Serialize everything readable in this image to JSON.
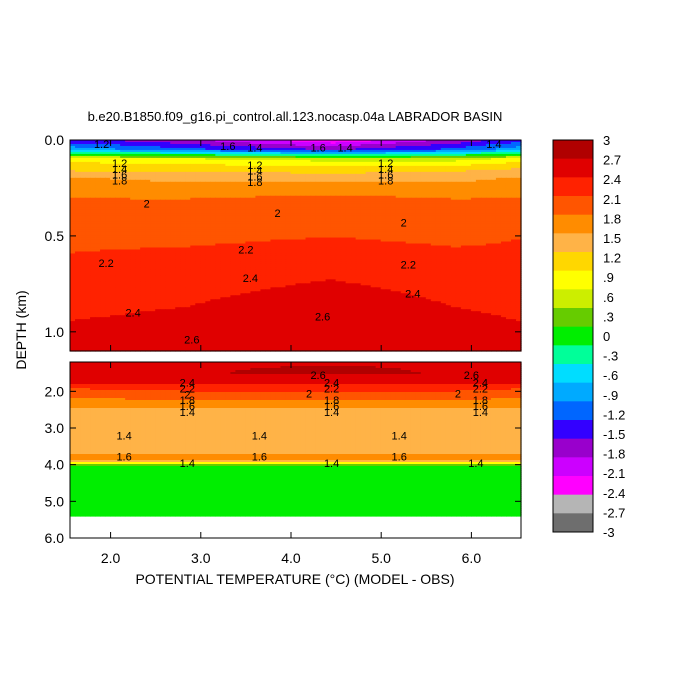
{
  "chart_data": {
    "type": "heatmap",
    "title": "b.e20.B1850.f09_g16.pi_control.all.123.nocasp.04a LABRADOR BASIN",
    "xlabel": "POTENTIAL TEMPERATURE (°C) (MODEL - OBS)",
    "ylabel": "DEPTH (km)",
    "xlim": [
      1.55,
      6.55
    ],
    "x_ticks": [
      "2.0",
      "3.0",
      "4.0",
      "5.0",
      "6.0"
    ],
    "x_tick_values": [
      2.0,
      3.0,
      4.0,
      5.0,
      6.0
    ],
    "panels": [
      {
        "name": "upper",
        "ylim": [
          0.0,
          1.1
        ],
        "y_ticks": [
          "0.0",
          "0.5",
          "1.0"
        ],
        "y_tick_values": [
          0.0,
          0.5,
          1.0
        ],
        "field": {
          "x": [
            1.55,
            2.85,
            4.45,
            5.8,
            6.55
          ],
          "y": [
            0.0,
            0.05,
            0.1,
            0.15,
            0.2,
            0.3,
            0.45,
            0.6,
            0.75,
            0.9,
            1.05,
            1.1
          ],
          "z": [
            [
              -1.5,
              -1.8,
              -2.4,
              -1.8,
              -1.4
            ],
            [
              -0.8,
              -1.2,
              -1.6,
              -1.2,
              -0.8
            ],
            [
              0.9,
              0.8,
              0.6,
              0.6,
              0.9
            ],
            [
              1.2,
              1.2,
              1.1,
              1.2,
              1.3
            ],
            [
              1.6,
              1.5,
              1.5,
              1.5,
              1.6
            ],
            [
              1.85,
              1.85,
              1.9,
              1.85,
              1.85
            ],
            [
              2.05,
              2.0,
              2.05,
              2.0,
              2.1
            ],
            [
              2.15,
              2.2,
              2.3,
              2.2,
              2.2
            ],
            [
              2.3,
              2.35,
              2.45,
              2.35,
              2.3
            ],
            [
              2.4,
              2.45,
              2.6,
              2.45,
              2.4
            ],
            [
              2.5,
              2.55,
              2.65,
              2.55,
              2.5
            ],
            [
              2.55,
              2.6,
              2.7,
              2.6,
              2.55
            ]
          ]
        },
        "contour_labels": [
          {
            "text": "1.2",
            "x": 1.9,
            "y": 0.02
          },
          {
            "text": "1.6",
            "x": 3.3,
            "y": 0.03
          },
          {
            "text": "1.4",
            "x": 3.6,
            "y": 0.04
          },
          {
            "text": "1.6",
            "x": 4.3,
            "y": 0.04
          },
          {
            "text": "1.4",
            "x": 4.6,
            "y": 0.04
          },
          {
            "text": "1.4",
            "x": 6.25,
            "y": 0.02
          },
          {
            "text": "1.2",
            "x": 2.1,
            "y": 0.12
          },
          {
            "text": "1.4",
            "x": 2.1,
            "y": 0.15
          },
          {
            "text": "1.6",
            "x": 2.1,
            "y": 0.18
          },
          {
            "text": "1.8",
            "x": 2.1,
            "y": 0.21
          },
          {
            "text": "1.2",
            "x": 3.6,
            "y": 0.13
          },
          {
            "text": "1.4",
            "x": 3.6,
            "y": 0.16
          },
          {
            "text": "1.6",
            "x": 3.6,
            "y": 0.19
          },
          {
            "text": "1.8",
            "x": 3.6,
            "y": 0.22
          },
          {
            "text": "1.2",
            "x": 5.05,
            "y": 0.12
          },
          {
            "text": "1.4",
            "x": 5.05,
            "y": 0.15
          },
          {
            "text": "1.6",
            "x": 5.05,
            "y": 0.18
          },
          {
            "text": "1.8",
            "x": 5.05,
            "y": 0.21
          },
          {
            "text": "2",
            "x": 2.4,
            "y": 0.33
          },
          {
            "text": "2",
            "x": 3.85,
            "y": 0.38
          },
          {
            "text": "2",
            "x": 5.25,
            "y": 0.43
          },
          {
            "text": "2.2",
            "x": 3.5,
            "y": 0.57
          },
          {
            "text": "2.2",
            "x": 1.95,
            "y": 0.64
          },
          {
            "text": "2.2",
            "x": 5.3,
            "y": 0.65
          },
          {
            "text": "2.4",
            "x": 3.55,
            "y": 0.72
          },
          {
            "text": "2.4",
            "x": 5.35,
            "y": 0.8
          },
          {
            "text": "2.4",
            "x": 2.25,
            "y": 0.9
          },
          {
            "text": "2.6",
            "x": 4.35,
            "y": 0.92
          },
          {
            "text": "2.6",
            "x": 2.9,
            "y": 1.04
          }
        ]
      },
      {
        "name": "lower",
        "ylim": [
          1.2,
          6.0
        ],
        "y_ticks": [
          "2.0",
          "3.0",
          "4.0",
          "5.0",
          "6.0"
        ],
        "y_tick_values": [
          2.0,
          3.0,
          4.0,
          5.0,
          6.0
        ],
        "field": {
          "x": [
            1.55,
            2.85,
            4.45,
            5.8,
            6.55
          ],
          "y": [
            1.2,
            1.5,
            1.75,
            1.95,
            2.15,
            2.35,
            2.55,
            3.0,
            3.5,
            3.85,
            3.95,
            4.05,
            4.1,
            5.4
          ],
          "z": [
            [
              2.7,
              2.7,
              2.7,
              2.7,
              2.7
            ],
            [
              2.65,
              2.7,
              2.75,
              2.7,
              2.65
            ],
            [
              2.5,
              2.5,
              2.55,
              2.5,
              2.5
            ],
            [
              2.1,
              2.2,
              2.2,
              2.2,
              2.1
            ],
            [
              1.9,
              1.95,
              1.95,
              1.95,
              1.9
            ],
            [
              1.7,
              1.7,
              1.7,
              1.7,
              1.7
            ],
            [
              1.5,
              1.5,
              1.5,
              1.5,
              1.5
            ],
            [
              1.45,
              1.45,
              1.45,
              1.45,
              1.45
            ],
            [
              1.5,
              1.5,
              1.5,
              1.5,
              1.5
            ],
            [
              1.62,
              1.62,
              1.62,
              1.62,
              1.62
            ],
            [
              1.0,
              1.0,
              1.0,
              1.0,
              1.0
            ],
            [
              0.0,
              0.0,
              0.0,
              0.0,
              0.0
            ],
            [
              0.05,
              0.05,
              0.05,
              0.05,
              0.05
            ],
            [
              0.05,
              0.05,
              0.05,
              0.05,
              0.05
            ]
          ]
        },
        "data_bottom": 5.4,
        "contour_labels": [
          {
            "text": "2.6",
            "x": 4.3,
            "y": 1.55
          },
          {
            "text": "2.6",
            "x": 6.0,
            "y": 1.55
          },
          {
            "text": "2.4",
            "x": 2.85,
            "y": 1.76
          },
          {
            "text": "2.2",
            "x": 2.85,
            "y": 1.92
          },
          {
            "text": "2",
            "x": 2.85,
            "y": 2.08
          },
          {
            "text": "1.8",
            "x": 2.85,
            "y": 2.24
          },
          {
            "text": "1.6",
            "x": 2.85,
            "y": 2.4
          },
          {
            "text": "1.4",
            "x": 2.85,
            "y": 2.56
          },
          {
            "text": "2.4",
            "x": 4.45,
            "y": 1.76
          },
          {
            "text": "2.2",
            "x": 4.45,
            "y": 1.92
          },
          {
            "text": "2",
            "x": 4.2,
            "y": 2.06
          },
          {
            "text": "1.8",
            "x": 4.45,
            "y": 2.24
          },
          {
            "text": "1.6",
            "x": 4.45,
            "y": 2.4
          },
          {
            "text": "1.4",
            "x": 4.45,
            "y": 2.56
          },
          {
            "text": "2.4",
            "x": 6.1,
            "y": 1.76
          },
          {
            "text": "2.2",
            "x": 6.1,
            "y": 1.92
          },
          {
            "text": "2",
            "x": 5.85,
            "y": 2.06
          },
          {
            "text": "1.8",
            "x": 6.1,
            "y": 2.24
          },
          {
            "text": "1.6",
            "x": 6.1,
            "y": 2.4
          },
          {
            "text": "1.4",
            "x": 6.1,
            "y": 2.56
          },
          {
            "text": "1.4",
            "x": 2.15,
            "y": 3.2
          },
          {
            "text": "1.4",
            "x": 3.65,
            "y": 3.2
          },
          {
            "text": "1.4",
            "x": 5.2,
            "y": 3.2
          },
          {
            "text": "1.6",
            "x": 2.15,
            "y": 3.78
          },
          {
            "text": "1.6",
            "x": 3.65,
            "y": 3.78
          },
          {
            "text": "1.6",
            "x": 5.2,
            "y": 3.78
          },
          {
            "text": "1.4",
            "x": 2.85,
            "y": 3.95
          },
          {
            "text": "1.4",
            "x": 4.45,
            "y": 3.95
          },
          {
            "text": "1.4",
            "x": 6.05,
            "y": 3.95
          }
        ]
      }
    ],
    "colorbar": {
      "min": -3.0,
      "max": 3.0,
      "labels": [
        "3",
        "2.7",
        "2.4",
        "2.1",
        "1.8",
        "1.5",
        "1.2",
        ".9",
        ".6",
        ".3",
        "0",
        "-.3",
        "-.6",
        "-.9",
        "-1.2",
        "-1.5",
        "-1.8",
        "-2.1",
        "-2.4",
        "-2.7",
        "-3"
      ],
      "label_values": [
        3.0,
        2.7,
        2.4,
        2.1,
        1.8,
        1.5,
        1.2,
        0.9,
        0.6,
        0.3,
        0.0,
        -0.3,
        -0.6,
        -0.9,
        -1.2,
        -1.5,
        -1.8,
        -2.1,
        -2.4,
        -2.7,
        -3.0
      ],
      "colors_low_to_high": [
        "#6e6e6e",
        "#b5b5b5",
        "#ff00ff",
        "#cc00ff",
        "#9900cc",
        "#3300ff",
        "#0066ff",
        "#00aaff",
        "#00ddff",
        "#00ff99",
        "#00ee00",
        "#66cc00",
        "#ccee00",
        "#ffff00",
        "#ffd700",
        "#ffb347",
        "#ff8c00",
        "#ff5500",
        "#ff2200",
        "#e00000",
        "#b00000"
      ]
    }
  }
}
